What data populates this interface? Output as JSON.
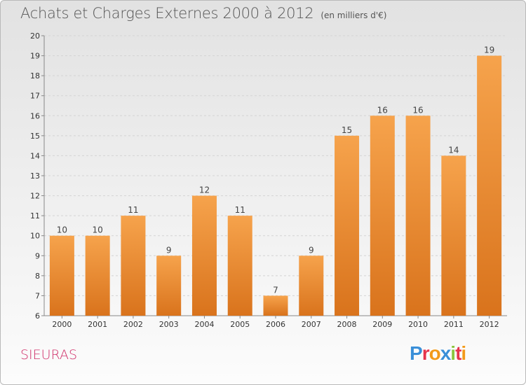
{
  "title": "Achats et Charges Externes 2000 à 2012",
  "unit": "(en milliers d'€)",
  "town": "SIEURAS",
  "logo": {
    "letters": [
      "P",
      "r",
      "o",
      "x",
      "i",
      "t",
      "i"
    ],
    "colors": [
      "#3a8fd8",
      "#e5334b",
      "#f29a1b",
      "#3a8fd8",
      "#8bc53f",
      "#e5334b",
      "#f29a1b"
    ]
  },
  "chart_data": {
    "type": "bar",
    "title": "Achats et Charges Externes 2000 à 2012",
    "categories": [
      "2000",
      "2001",
      "2002",
      "2003",
      "2004",
      "2005",
      "2006",
      "2007",
      "2008",
      "2009",
      "2010",
      "2011",
      "2012"
    ],
    "values": [
      10,
      10,
      11,
      9,
      12,
      11,
      7,
      9,
      15,
      16,
      16,
      14,
      19
    ],
    "ylim": [
      6,
      20
    ],
    "yticks": [
      6,
      7,
      8,
      9,
      10,
      11,
      12,
      13,
      14,
      15,
      16,
      17,
      18,
      19,
      20
    ],
    "grid": "horizontal dashed",
    "bar_color": "#f0963a"
  }
}
